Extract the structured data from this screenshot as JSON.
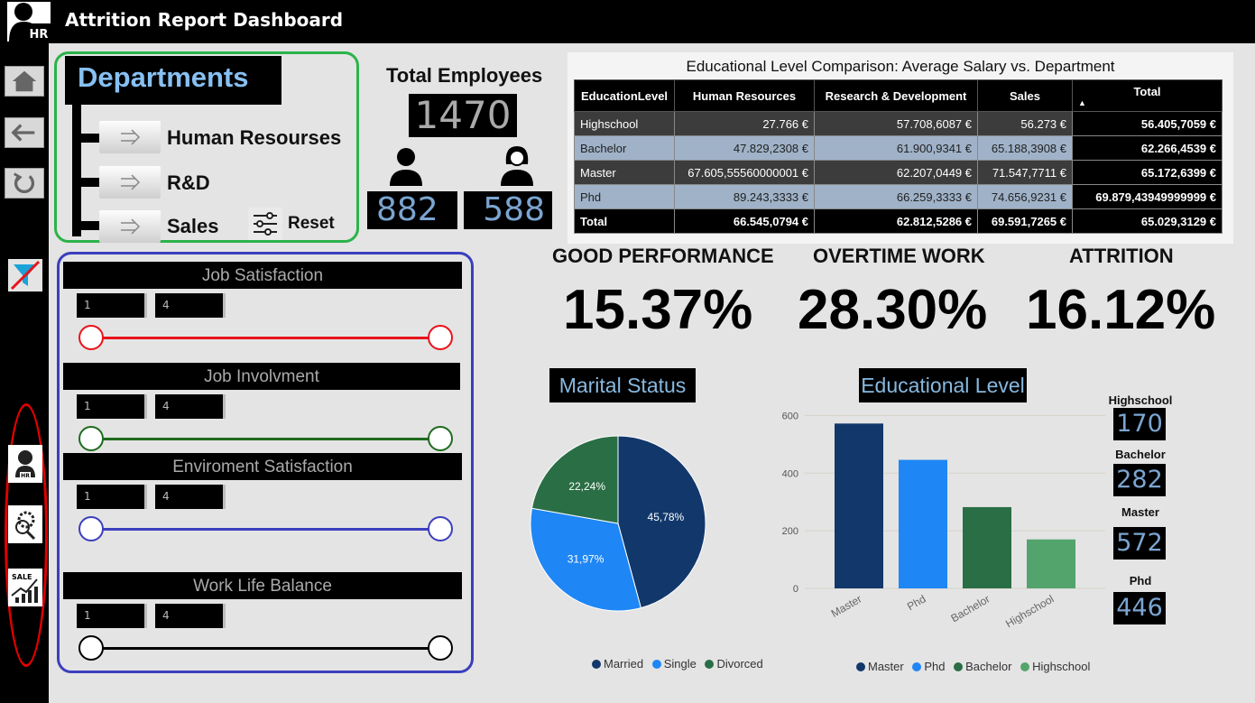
{
  "app": {
    "title": "Attrition Report Dashboard",
    "logo_text": "HR"
  },
  "sidebar": {
    "buttons": [
      {
        "icon": "home-icon"
      },
      {
        "icon": "back-arrow-icon"
      },
      {
        "icon": "refresh-icon"
      }
    ],
    "filter_icon": "clear-filter-icon",
    "page_icons": [
      {
        "icon": "hr-person-icon",
        "text": "HR"
      },
      {
        "icon": "research-gear-icon"
      },
      {
        "icon": "sales-chart-icon",
        "text": "SALE"
      }
    ]
  },
  "departments": {
    "title": "Departments",
    "items": [
      {
        "label": "Human Resourses"
      },
      {
        "label": "R&D"
      },
      {
        "label": "Sales"
      }
    ],
    "reset_label": "Reset"
  },
  "total_employees": {
    "title": "Total Employees",
    "value": "1470",
    "male": "882",
    "female": "588"
  },
  "table": {
    "title": "Educational Level Comparison: Average Salary vs. Department",
    "headers": [
      "EducationLevel",
      "Human Resources",
      "Research & Development",
      "Sales",
      "Total"
    ],
    "rows": [
      {
        "style": "dark",
        "cells": [
          "Highschool",
          "27.766 €",
          "57.708,6087 €",
          "56.273 €",
          "56.405,7059 €"
        ]
      },
      {
        "style": "light",
        "cells": [
          "Bachelor",
          "47.829,2308 €",
          "61.900,9341 €",
          "65.188,3908 €",
          "62.266,4539 €"
        ]
      },
      {
        "style": "dark",
        "cells": [
          "Master",
          "67.605,55560000001 €",
          "62.207,0449 €",
          "71.547,7711 €",
          "65.172,6399 €"
        ]
      },
      {
        "style": "light",
        "cells": [
          "Phd",
          "89.243,3333 €",
          "66.259,3333 €",
          "74.656,9231 €",
          "69.879,43949999999 €"
        ]
      },
      {
        "style": "total",
        "cells": [
          "Total",
          "66.545,0794 €",
          "62.812,5286 €",
          "69.591,7265 €",
          "65.029,3129 €"
        ]
      }
    ]
  },
  "kpis": [
    {
      "label": "GOOD PERFORMANCE",
      "value": "15.37%"
    },
    {
      "label": "OVERTIME WORK",
      "value": "28.30%"
    },
    {
      "label": "ATTRITION",
      "value": "16.12%"
    }
  ],
  "sliders": [
    {
      "title": "Job Satisfaction",
      "min": "1",
      "max": "4",
      "color": "#e8131b"
    },
    {
      "title": "Job Involvment",
      "min": "1",
      "max": "4",
      "color": "#1f6b1f"
    },
    {
      "title": "Enviroment Satisfaction",
      "min": "1",
      "max": "4",
      "color": "#3b3fbe"
    },
    {
      "title": "Work Life Balance",
      "min": "1",
      "max": "4",
      "color": "#000000"
    }
  ],
  "chart_data": [
    {
      "type": "pie",
      "title": "Marital Status",
      "slices": [
        {
          "name": "Married",
          "value": 45.78,
          "label": "45,78%",
          "color": "#12386b"
        },
        {
          "name": "Single",
          "value": 31.97,
          "label": "31,97%",
          "color": "#1f86f5"
        },
        {
          "name": "Divorced",
          "value": 22.24,
          "label": "22,24%",
          "color": "#2a6e45"
        }
      ],
      "legend": [
        "Married",
        "Single",
        "Divorced"
      ]
    },
    {
      "type": "bar",
      "title": "Educational Level",
      "categories": [
        "Master",
        "Phd",
        "Bachelor",
        "Highschool"
      ],
      "values": [
        572,
        446,
        282,
        170
      ],
      "colors": [
        "#12386b",
        "#1f86f5",
        "#2a6e45",
        "#53a46c"
      ],
      "yticks": [
        "0",
        "200",
        "400",
        "600"
      ],
      "ylim": [
        0,
        620
      ],
      "legend": [
        "Master",
        "Phd",
        "Bachelor",
        "Highschool"
      ]
    }
  ],
  "education_counts": [
    {
      "label": "Highschool",
      "value": "170"
    },
    {
      "label": "Bachelor",
      "value": "282"
    },
    {
      "label": "Master",
      "value": "572"
    },
    {
      "label": "Phd",
      "value": "446"
    }
  ]
}
